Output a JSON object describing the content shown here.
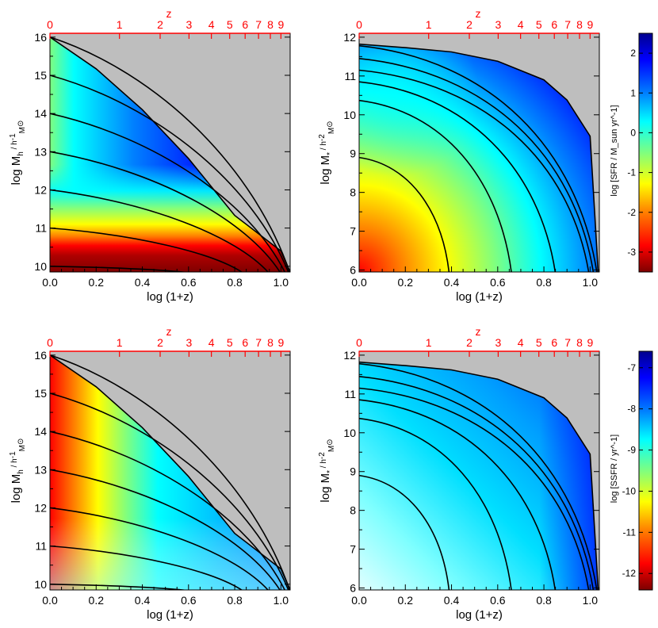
{
  "figure": {
    "top_axis_title": "z",
    "x_axis_title": "log (1+z)"
  },
  "colors": {
    "top_axis": "#ff0000",
    "forbidden_region": "#bebebe",
    "tracks": "#000000",
    "colormap": [
      "#7f0000",
      "#ff0000",
      "#ff7f00",
      "#ffff00",
      "#7fff7f",
      "#00ffff",
      "#007fff",
      "#0000ff",
      "#00008f"
    ]
  },
  "chart_data": [
    {
      "type": "heatmap",
      "panel": "top-left",
      "quantity": "log SFR",
      "xlabel": "log (1+z)",
      "ylabel": "log M_h / h^-1 M_sun",
      "xlim": [
        0,
        1.04
      ],
      "ylim": [
        9.85,
        16.1
      ],
      "xticks": [
        "0.0",
        "0.2",
        "0.4",
        "0.6",
        "0.8",
        "1.0"
      ],
      "yticks": [
        "10",
        "11",
        "12",
        "13",
        "14",
        "15",
        "16"
      ],
      "top_ticks": [
        "0",
        "1",
        "2",
        "3",
        "4",
        "5",
        "6",
        "7",
        "8",
        "9"
      ],
      "top_ticks_z": [
        0,
        1,
        2,
        3,
        4,
        5,
        6,
        7,
        8,
        9
      ],
      "track_start_values": [
        16,
        15,
        14,
        13,
        12,
        11,
        10
      ],
      "track_end_x": [
        1.04,
        1.035,
        1.02,
        1.0,
        0.95,
        0.84,
        0.63
      ],
      "grey_boundary_x": [
        0,
        0.2,
        0.4,
        0.6,
        0.8,
        1.0,
        1.04
      ],
      "grey_boundary_y": [
        16.0,
        15.17,
        14.1,
        12.82,
        11.33,
        10.4,
        9.85
      ]
    },
    {
      "type": "heatmap",
      "panel": "top-right",
      "quantity": "log SFR",
      "xlabel": "log (1+z)",
      "ylabel": "log M_* / h^-2 M_sun",
      "xlim": [
        0,
        1.04
      ],
      "ylim": [
        5.95,
        12.1
      ],
      "xticks": [
        "0.0",
        "0.2",
        "0.4",
        "0.6",
        "0.8",
        "1.0"
      ],
      "yticks": [
        "6",
        "7",
        "8",
        "9",
        "10",
        "11",
        "12"
      ],
      "top_ticks": [
        "0",
        "1",
        "2",
        "3",
        "4",
        "5",
        "6",
        "7",
        "8",
        "9"
      ],
      "top_ticks_z": [
        0,
        1,
        2,
        3,
        4,
        5,
        6,
        7,
        8,
        9
      ],
      "track_start_values": [
        11.78,
        11.45,
        11.15,
        10.85,
        10.37,
        8.9
      ],
      "track_end_x": [
        1.03,
        1.015,
        0.995,
        0.85,
        0.66,
        0.39
      ],
      "grey_boundary_x": [
        0,
        0.2,
        0.4,
        0.6,
        0.8,
        0.9,
        1.0,
        1.035
      ],
      "grey_boundary_y": [
        11.82,
        11.73,
        11.62,
        11.38,
        10.9,
        10.38,
        9.45,
        5.95
      ]
    },
    {
      "type": "heatmap",
      "panel": "bottom-left",
      "quantity": "log SSFR",
      "xlabel": "log (1+z)",
      "ylabel": "log M_h / h^-1 M_sun",
      "xlim": [
        0,
        1.04
      ],
      "ylim": [
        9.85,
        16.1
      ],
      "xticks": [
        "0.0",
        "0.2",
        "0.4",
        "0.6",
        "0.8",
        "1.0"
      ],
      "yticks": [
        "10",
        "11",
        "12",
        "13",
        "14",
        "15",
        "16"
      ],
      "top_ticks": [
        "0",
        "1",
        "2",
        "3",
        "4",
        "5",
        "6",
        "7",
        "8",
        "9"
      ],
      "top_ticks_z": [
        0,
        1,
        2,
        3,
        4,
        5,
        6,
        7,
        8,
        9
      ],
      "track_start_values": [
        16,
        15,
        14,
        13,
        12,
        11,
        10
      ],
      "track_end_x": [
        1.04,
        1.035,
        1.02,
        1.0,
        0.95,
        0.84,
        0.63
      ],
      "grey_boundary_x": [
        0,
        0.2,
        0.4,
        0.6,
        0.8,
        1.0,
        1.04
      ],
      "grey_boundary_y": [
        16.0,
        15.17,
        14.1,
        12.82,
        11.33,
        10.4,
        9.85
      ]
    },
    {
      "type": "heatmap",
      "panel": "bottom-right",
      "quantity": "log SSFR",
      "xlabel": "log (1+z)",
      "ylabel": "log M_* / h^-2 M_sun",
      "xlim": [
        0,
        1.04
      ],
      "ylim": [
        5.95,
        12.1
      ],
      "xticks": [
        "0.0",
        "0.2",
        "0.4",
        "0.6",
        "0.8",
        "1.0"
      ],
      "yticks": [
        "6",
        "7",
        "8",
        "9",
        "10",
        "11",
        "12"
      ],
      "top_ticks": [
        "0",
        "1",
        "2",
        "3",
        "4",
        "5",
        "6",
        "7",
        "8",
        "9"
      ],
      "top_ticks_z": [
        0,
        1,
        2,
        3,
        4,
        5,
        6,
        7,
        8,
        9
      ],
      "track_start_values": [
        11.78,
        11.45,
        11.15,
        10.85,
        10.37,
        8.9
      ],
      "track_end_x": [
        1.03,
        1.015,
        0.995,
        0.85,
        0.66,
        0.39
      ],
      "grey_boundary_x": [
        0,
        0.2,
        0.4,
        0.6,
        0.8,
        0.9,
        1.0,
        1.035
      ],
      "grey_boundary_y": [
        11.82,
        11.73,
        11.62,
        11.38,
        10.9,
        10.38,
        9.45,
        5.95
      ]
    }
  ],
  "colorbars": [
    {
      "label": "log [SFR / M_sun yr^-1]",
      "range": [
        -3.5,
        2.5
      ],
      "ticks": [
        "-3",
        "-2",
        "-1",
        "0",
        "1",
        "2"
      ],
      "tick_values": [
        -3,
        -2,
        -1,
        0,
        1,
        2
      ]
    },
    {
      "label": "log [SSFR / yr^-1]",
      "range": [
        -12.4,
        -6.6
      ],
      "ticks": [
        "-12",
        "-11",
        "-10",
        "-9",
        "-8",
        "-7"
      ],
      "tick_values": [
        -12,
        -11,
        -10,
        -9,
        -8,
        -7
      ]
    }
  ]
}
